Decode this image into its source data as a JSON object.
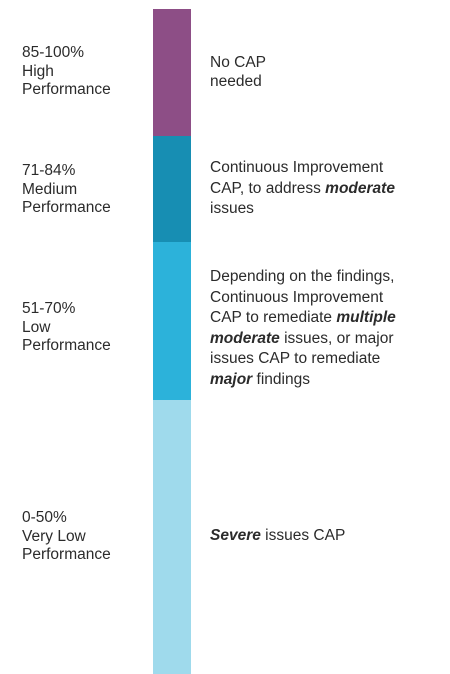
{
  "tiers": [
    {
      "range": "85-100%",
      "level": "High",
      "category": "Performance",
      "color": "#8d4e86",
      "description": {
        "line1": "No CAP",
        "line2": "needed"
      }
    },
    {
      "range": "71-84%",
      "level": "Medium",
      "category": "Performance",
      "color": "#178eb3",
      "description": {
        "line1": "Continuous Improvement",
        "line2a": "CAP, to address ",
        "line2b": "moderate",
        "line3": "issues"
      }
    },
    {
      "range": "51-70%",
      "level": "Low",
      "category": "Performance",
      "color": "#2cb2da",
      "description": {
        "line1": "Depending on the findings,",
        "line2": "Continuous Improvement",
        "line3a": "CAP to remediate ",
        "line3b": "multiple",
        "line4a": "moderate",
        "line4b": " issues, or major",
        "line5": "issues CAP to remediate",
        "line6a": "major",
        "line6b": " findings"
      }
    },
    {
      "range": "0-50%",
      "level": "Very Low",
      "category": "Performance",
      "color": "#9fdaec",
      "description": {
        "line1a": "Severe",
        "line1b": " issues CAP"
      }
    }
  ]
}
